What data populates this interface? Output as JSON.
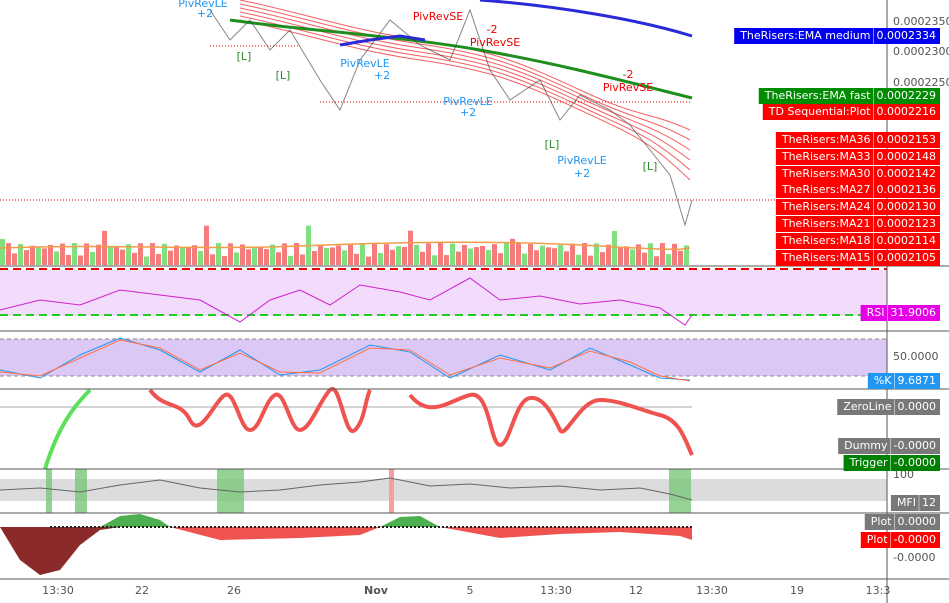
{
  "price_axis": [
    "0.0002350",
    "0.0002300",
    "0.0002250"
  ],
  "price_labels": [
    {
      "name": "TheRisers:EMA medium",
      "value": "0.0002334",
      "color": "#0000ee"
    },
    {
      "name": "TheRisers:EMA fast",
      "value": "0.0002229",
      "color": "#008c00"
    },
    {
      "name": "TD Sequential:Plot",
      "value": "0.0002216",
      "color": "#ff0000"
    },
    {
      "name": "TheRisers:MA36",
      "value": "0.0002153",
      "color": "#ff0000"
    },
    {
      "name": "TheRisers:MA33",
      "value": "0.0002148",
      "color": "#ff0000"
    },
    {
      "name": "TheRisers:MA30",
      "value": "0.0002142",
      "color": "#ff0000"
    },
    {
      "name": "TheRisers:MA27",
      "value": "0.0002136",
      "color": "#ff0000"
    },
    {
      "name": "TheRisers:MA24",
      "value": "0.0002130",
      "color": "#ff0000"
    },
    {
      "name": "TheRisers:MA21",
      "value": "0.0002123",
      "color": "#ff0000"
    },
    {
      "name": "TheRisers:MA18",
      "value": "0.0002114",
      "color": "#ff0000"
    },
    {
      "name": "TheRisers:MA15",
      "value": "0.0002105",
      "color": "#ff0000"
    }
  ],
  "annotations": {
    "pivrevle": "PivRevLE",
    "pivrevse": "PivRevSE",
    "plus2": "+2",
    "minus2": "-2",
    "l_mark": "[L]"
  },
  "rsi": {
    "name": "RSI",
    "value": "31.9006",
    "color": "#e600e6"
  },
  "stoch": {
    "tick": "50.0000",
    "name": "%K",
    "value": "9.6871",
    "color": "#2196f3"
  },
  "oscillator": [
    {
      "name": "ZeroLine",
      "value": "0.0000",
      "color": "#787878"
    },
    {
      "name": "Dummy",
      "value": "-0.0000",
      "color": "#787878"
    },
    {
      "name": "Trigger",
      "value": "-0.0000",
      "color": "#008000"
    }
  ],
  "mfi": {
    "tick": "100",
    "name": "MFI",
    "value": "12",
    "color": "#787878"
  },
  "bottom": {
    "labels": [
      {
        "name": "Plot",
        "value": "0.0000",
        "color": "#787878"
      },
      {
        "name": "Plot",
        "value": "-0.0000",
        "color": "#ff0000"
      }
    ],
    "tick": "-0.0000"
  },
  "x_axis": [
    "13:30",
    "22",
    "26",
    "Nov",
    "5",
    "13:30",
    "12",
    "13:30",
    "19",
    "13:3"
  ]
}
